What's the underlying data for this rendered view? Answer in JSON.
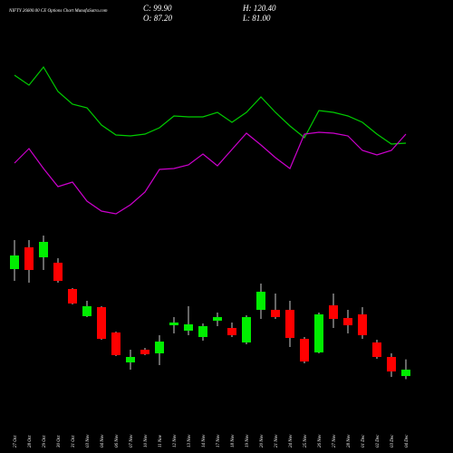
{
  "chart_data": {
    "type": "candlestick",
    "title": "NIFTY 26600.00 CE Options Chart MunafaSutra.com",
    "ohlc_labels": [
      "C: 99.90",
      "H: 120.40",
      "O: 87.20",
      "L: 81.00"
    ],
    "categories": [
      "27 Oct",
      "28 Oct",
      "29 Oct",
      "30 Oct",
      "31 Oct",
      "03 Nov",
      "04 Nov",
      "06 Nov",
      "07 Nov",
      "10 Nov",
      "11 Nov",
      "12 Nov",
      "13 Nov",
      "14 Nov",
      "17 Nov",
      "18 Nov",
      "19 Nov",
      "20 Nov",
      "21 Nov",
      "24 Nov",
      "25 Nov",
      "26 Nov",
      "27 Nov",
      "28 Nov",
      "01 Dec",
      "02 Dec",
      "03 Dec",
      "04 Dec"
    ],
    "open": [
      299.7,
      342.9,
      323.1,
      312.3,
      260.1,
      206.1,
      224.1,
      173.7,
      114.3,
      139.5,
      132.3,
      188.1,
      177.3,
      164.7,
      197.1,
      182.7,
      153.9,
      218.7,
      218.7,
      218.7,
      161.1,
      134.1,
      227.7,
      202.5,
      209.7,
      153.9,
      125.1,
      87.2
    ],
    "high": [
      357.3,
      357.3,
      366.3,
      321.3,
      261.9,
      236.7,
      225.9,
      175.5,
      139.5,
      143.1,
      168.3,
      204.3,
      225.9,
      191.7,
      213.3,
      193.5,
      207.9,
      270.9,
      251.1,
      236.7,
      164.7,
      213.3,
      251.1,
      218.7,
      224.1,
      159.3,
      132.3,
      120.4
    ],
    "low": [
      276.3,
      272.7,
      297.9,
      272.7,
      229.5,
      204.3,
      159.3,
      126.9,
      99.9,
      128.7,
      108.9,
      171.9,
      168.3,
      157.5,
      186.3,
      164.7,
      150.3,
      200.7,
      200.7,
      144.9,
      112.5,
      132.3,
      182.7,
      171.9,
      161.1,
      121.5,
      85.5,
      81.0
    ],
    "close": [
      326.7,
      297.9,
      353.7,
      276.3,
      231.3,
      225.9,
      161.1,
      128.7,
      125.1,
      130.5,
      155.7,
      193.5,
      189.9,
      186.3,
      204.3,
      168.3,
      204.3,
      254.7,
      204.3,
      162.9,
      116.1,
      209.7,
      200.7,
      188.1,
      168.3,
      125.1,
      96.3,
      99.9
    ],
    "up_color": "#00ee00",
    "down_color": "#ff0000",
    "ylim": [
      0,
      500
    ],
    "y2lim": [
      0,
      100
    ],
    "lines": [
      {
        "color": "#00cc00",
        "axis": "y2",
        "values": [
          88.5,
          83,
          93,
          79.5,
          72.5,
          70.5,
          61,
          55.5,
          55,
          56,
          59.5,
          66,
          65.5,
          65.5,
          68,
          62.5,
          68,
          76.5,
          68,
          60.5,
          54,
          69,
          68,
          66,
          62.5,
          56,
          50.5,
          51
        ]
      },
      {
        "color": "#cc00cc",
        "axis": "y2",
        "values": [
          40,
          48,
          37,
          27,
          29.5,
          19,
          13.5,
          12,
          17,
          24,
          36.5,
          37,
          39,
          45,
          38.5,
          47.5,
          56.5,
          50,
          43,
          37,
          56,
          57,
          56.5,
          55,
          47,
          44.5,
          47,
          56
        ]
      }
    ]
  }
}
